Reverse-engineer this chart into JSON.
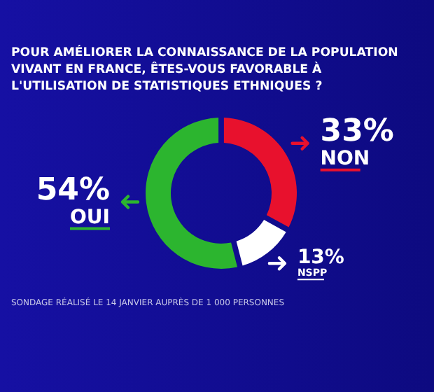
{
  "chart_data": {
    "type": "donut",
    "title": "POUR AMÉLIORER LA CONNAISSANCE DE LA POPULATION VIVANT EN FRANCE, ÊTES-VOUS FAVORABLE À L'UTILISATION DE STATISTIQUES ETHNIQUES ?",
    "categories": [
      "NON",
      "NSPP",
      "OUI"
    ],
    "values": [
      33,
      13,
      54
    ],
    "value_labels": [
      "33%",
      "13%",
      "54%"
    ],
    "colors": [
      "#e8112d",
      "#ffffff",
      "#2cb52f"
    ],
    "annotations": [
      "SONDAGE RÉALISÉ LE 14 JANVIER AUPRÈS DE 1 000 PERSONNES"
    ]
  }
}
